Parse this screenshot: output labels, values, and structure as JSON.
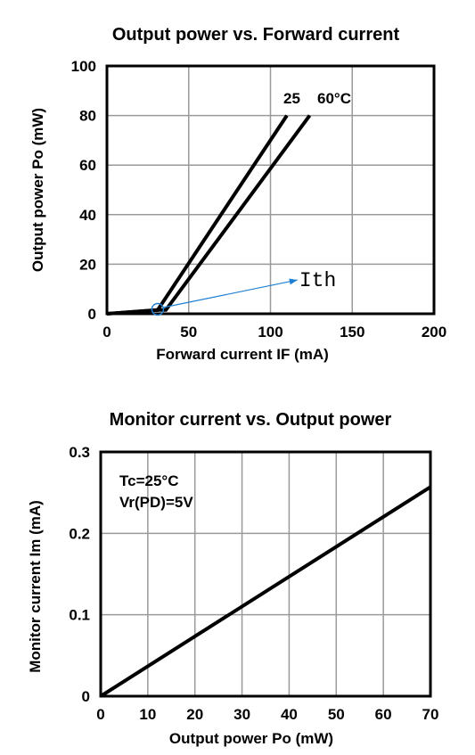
{
  "chart_data": [
    {
      "type": "line",
      "title": "Output power vs. Forward current",
      "xlabel": "Forward current  IF (mA)",
      "ylabel": "Output power  Po (mW)",
      "xlim": [
        0,
        200
      ],
      "ylim": [
        0,
        100
      ],
      "xticks": [
        0,
        50,
        100,
        150,
        200
      ],
      "yticks": [
        0,
        20,
        40,
        60,
        80,
        100
      ],
      "grid": true,
      "series": [
        {
          "name": "25",
          "points": [
            [
              0,
              0
            ],
            [
              31,
              1.5
            ],
            [
              110,
              80
            ]
          ]
        },
        {
          "name": "60°C",
          "points": [
            [
              0,
              0
            ],
            [
              31,
              1.5
            ],
            [
              36,
              1.5
            ],
            [
              124,
              80
            ]
          ]
        }
      ],
      "annotations": [
        {
          "text": "Ith",
          "x": 110,
          "y": 14,
          "target": [
            31,
            1.8
          ],
          "color": "#1f7fd1"
        }
      ]
    },
    {
      "type": "line",
      "title": "Monitor current vs. Output power",
      "xlabel": "Output power  Po (mW)",
      "ylabel": "Monitor current  Im (mA)",
      "xlim": [
        0,
        70
      ],
      "ylim": [
        0,
        0.3
      ],
      "xticks": [
        0,
        10,
        20,
        30,
        40,
        50,
        60,
        70
      ],
      "yticks": [
        0,
        0.1,
        0.2,
        0.3
      ],
      "grid": true,
      "series": [
        {
          "points": [
            [
              0,
              0
            ],
            [
              70,
              0.257
            ]
          ]
        }
      ],
      "annotations": [
        {
          "text": "Tc=25°C"
        },
        {
          "text": "Vr(PD)=5V"
        }
      ]
    }
  ]
}
